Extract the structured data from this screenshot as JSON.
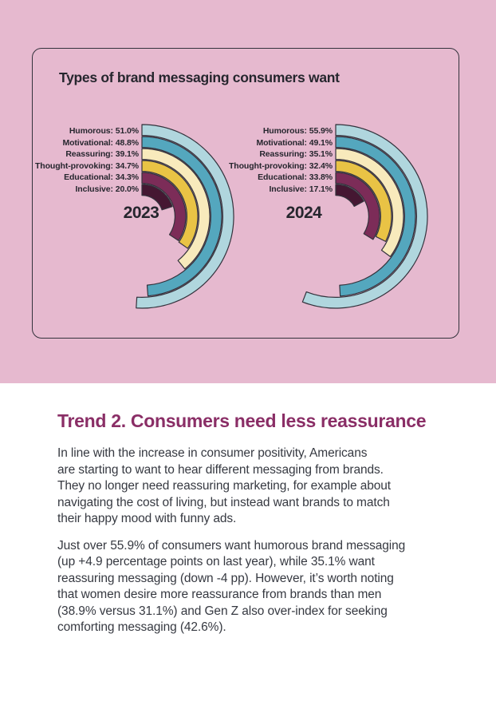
{
  "card": {
    "title": "Types of brand messaging consumers want"
  },
  "chart_data": [
    {
      "type": "radial_bar",
      "year": "2023",
      "categories": [
        "Humorous",
        "Motivational",
        "Reassuring",
        "Thought-provoking",
        "Educational",
        "Inclusive"
      ],
      "values": [
        51.0,
        48.8,
        39.1,
        34.7,
        34.3,
        20.0
      ],
      "unit": "%",
      "angle_scale": "percent_of_full_circle",
      "start_angle_deg": 0,
      "direction": "clockwise"
    },
    {
      "type": "radial_bar",
      "year": "2024",
      "categories": [
        "Humorous",
        "Motivational",
        "Reassuring",
        "Thought-provoking",
        "Educational",
        "Inclusive"
      ],
      "values": [
        55.9,
        49.1,
        35.1,
        32.4,
        33.8,
        17.1
      ],
      "unit": "%",
      "angle_scale": "percent_of_full_circle",
      "start_angle_deg": 0,
      "direction": "clockwise"
    }
  ],
  "theme": {
    "background_pink": "#e6b9cf",
    "card_border": "#33323c",
    "ring_outline": "#33323c",
    "ring_colors": [
      "#b0d6de",
      "#54a7be",
      "#f8eabc",
      "#e9c345",
      "#7c2c58",
      "#451732"
    ],
    "heading_color": "#8a2e66",
    "body_text_color": "#363941",
    "title_text_color": "#26262e"
  },
  "content": {
    "heading": "Trend 2. Consumers need less reassurance",
    "paragraph1": "In line with the increase in consumer positivity, Americans\nare starting to want to hear different messaging from brands.\nThey no longer need reassuring marketing, for example about\nnavigating the cost of living, but instead want brands to match\ntheir happy mood with funny ads.",
    "paragraph2": "Just over 55.9% of consumers want humorous brand messaging\n(up +4.9 percentage points on last year), while 35.1% want\nreassuring messaging (down -4 pp). However, it’s worth noting\nthat women desire more reassurance from brands than men\n(38.9% versus 31.1%) and Gen Z also over-index for seeking\ncomforting messaging (42.6%)."
  }
}
